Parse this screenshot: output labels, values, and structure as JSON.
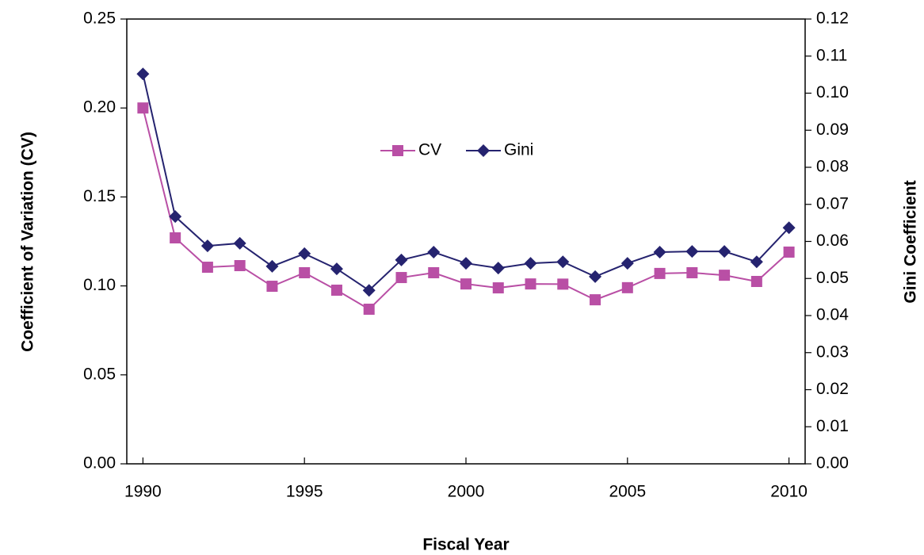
{
  "chart_data": {
    "type": "line",
    "x_label": "Fiscal Year",
    "y_label": "Coefficient of Variation (CV)",
    "y2_label": "Gini Coefficient",
    "x": [
      1990,
      1991,
      1992,
      1993,
      1994,
      1995,
      1996,
      1997,
      1998,
      1999,
      2000,
      2001,
      2002,
      2003,
      2004,
      2005,
      2006,
      2007,
      2008,
      2009,
      2010
    ],
    "xlim": [
      1989.5,
      2010.5
    ],
    "xticks": [
      1990,
      1995,
      2000,
      2005,
      2010
    ],
    "ylim": [
      0,
      0.25
    ],
    "yticks": [
      {
        "value": 0,
        "label": "0.00"
      },
      {
        "value": 0.05,
        "label": "0.05"
      },
      {
        "value": 0.1,
        "label": "0.10"
      },
      {
        "value": 0.15,
        "label": "0.15"
      },
      {
        "value": 0.2,
        "label": "0.20"
      },
      {
        "value": 0.25,
        "label": "0.25"
      }
    ],
    "y2lim": [
      0,
      0.12
    ],
    "y2ticks": [
      {
        "value": 0,
        "label": "0.00"
      },
      {
        "value": 0.01,
        "label": "0.01"
      },
      {
        "value": 0.02,
        "label": "0.02"
      },
      {
        "value": 0.03,
        "label": "0.03"
      },
      {
        "value": 0.04,
        "label": "0.04"
      },
      {
        "value": 0.05,
        "label": "0.05"
      },
      {
        "value": 0.06,
        "label": "0.06"
      },
      {
        "value": 0.07,
        "label": "0.07"
      },
      {
        "value": 0.08,
        "label": "0.08"
      },
      {
        "value": 0.09,
        "label": "0.09"
      },
      {
        "value": 0.1,
        "label": "0.10"
      },
      {
        "value": 0.11,
        "label": "0.11"
      },
      {
        "value": 0.12,
        "label": "0.12"
      }
    ],
    "grid": false,
    "legend": "center",
    "series": [
      {
        "name": "CV",
        "color": "#b94fa5",
        "marker": "square",
        "axis": "y",
        "values": [
          0.2,
          0.127,
          0.1105,
          0.1114,
          0.0998,
          0.1074,
          0.0976,
          0.0869,
          0.1047,
          0.1074,
          0.1011,
          0.0989,
          0.1011,
          0.101,
          0.0922,
          0.099,
          0.107,
          0.1074,
          0.106,
          0.1025,
          0.119
        ]
      },
      {
        "name": "Gini",
        "color": "#25236f",
        "marker": "diamond",
        "axis": "y2",
        "values": [
          0.1052,
          0.0667,
          0.0588,
          0.0595,
          0.0533,
          0.0567,
          0.0526,
          0.0468,
          0.055,
          0.0571,
          0.0541,
          0.0528,
          0.0541,
          0.0545,
          0.0505,
          0.0541,
          0.0571,
          0.0573,
          0.0573,
          0.0545,
          0.0637
        ]
      }
    ]
  }
}
